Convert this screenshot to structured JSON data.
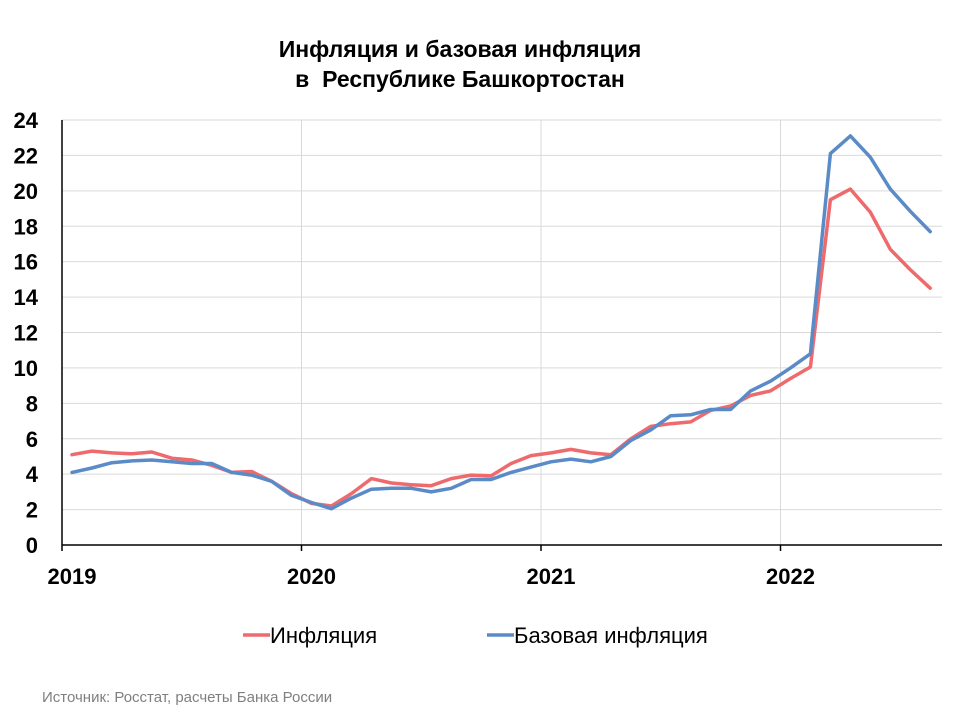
{
  "chart_data": {
    "type": "line",
    "title_line1": "Инфляция и базовая инфляция",
    "title_line2": "в  Республике Башкортостан",
    "source": "Источник: Росстат, расчеты Банка России",
    "x_tick_labels": [
      "2019",
      "2020",
      "2021",
      "2022"
    ],
    "y_tick_labels": [
      "0",
      "2",
      "4",
      "6",
      "8",
      "10",
      "12",
      "14",
      "16",
      "18",
      "20",
      "22",
      "24"
    ],
    "ylim": [
      0,
      24
    ],
    "grid": true,
    "legend_position": "bottom",
    "x_start": "2019-01",
    "series": [
      {
        "name": "Инфляция",
        "color": "#EE6A6C",
        "values": [
          5.1,
          5.3,
          5.2,
          5.15,
          5.25,
          4.9,
          4.8,
          4.5,
          4.1,
          4.15,
          3.6,
          2.9,
          2.35,
          2.2,
          2.9,
          3.75,
          3.5,
          3.4,
          3.35,
          3.75,
          3.95,
          3.9,
          4.6,
          5.05,
          5.2,
          5.4,
          5.2,
          5.1,
          6.0,
          6.7,
          6.85,
          6.95,
          7.6,
          7.85,
          8.45,
          8.7,
          9.4,
          10.05,
          19.5,
          20.1,
          18.8,
          16.7,
          15.55,
          14.5
        ]
      },
      {
        "name": "Базовая инфляция",
        "color": "#5B8BC7",
        "values": [
          4.1,
          4.35,
          4.65,
          4.75,
          4.8,
          4.7,
          4.6,
          4.6,
          4.1,
          3.95,
          3.6,
          2.8,
          2.4,
          2.05,
          2.65,
          3.15,
          3.2,
          3.2,
          3.0,
          3.2,
          3.7,
          3.7,
          4.1,
          4.4,
          4.7,
          4.85,
          4.7,
          5.0,
          5.9,
          6.5,
          7.3,
          7.35,
          7.65,
          7.65,
          8.7,
          9.25,
          10.0,
          10.8,
          22.1,
          23.1,
          21.9,
          20.1,
          18.85,
          17.7
        ]
      }
    ]
  }
}
